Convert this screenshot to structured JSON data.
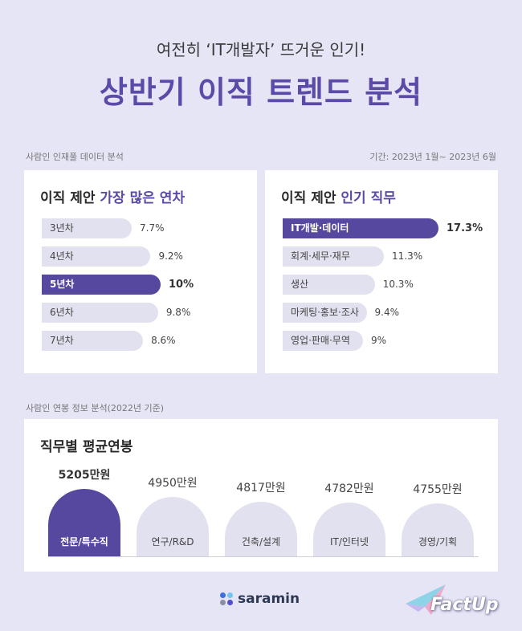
{
  "header": {
    "subtitle": "여전히 ‘IT개발자’ 뜨거운 인기!",
    "title": "상반기 이직 트렌드 분석"
  },
  "section1": {
    "source": "사람인 인재풀 데이터 분석",
    "period": "기간: 2023년 1월~ 2023년 6월"
  },
  "section2": {
    "source": "사람인 연봉 정보 분석(2022년 기준)"
  },
  "chart_data": [
    {
      "type": "bar",
      "orientation": "horizontal",
      "title_prefix": "이직 제안 ",
      "title_highlight": "가장 많은 연차",
      "categories": [
        "3년차",
        "4년차",
        "5년차",
        "6년차",
        "7년차"
      ],
      "values": [
        7.7,
        9.2,
        10,
        9.8,
        8.6
      ],
      "value_labels": [
        "7.7%",
        "9.2%",
        "10%",
        "9.8%",
        "8.6%"
      ],
      "unit": "%",
      "highlight_index": 2,
      "colors": {
        "bar": "#e2e1ef",
        "highlight": "#56479f"
      }
    },
    {
      "type": "bar",
      "orientation": "horizontal",
      "title_prefix": "이직 제안 ",
      "title_highlight": "인기 직무",
      "categories": [
        "IT개발·데이터",
        "회계·세무·재무",
        "생산",
        "마케팅·홍보·조사",
        "영업·판매·무역"
      ],
      "values": [
        17.3,
        11.3,
        10.3,
        9.4,
        9
      ],
      "value_labels": [
        "17.3%",
        "11.3%",
        "10.3%",
        "9.4%",
        "9%"
      ],
      "unit": "%",
      "highlight_index": 0,
      "colors": {
        "bar": "#e2e1ef",
        "highlight": "#56479f"
      }
    },
    {
      "type": "bar",
      "orientation": "vertical",
      "title": "직무별 평균연봉",
      "categories": [
        "전문/특수직",
        "연구/R&D",
        "건축/설계",
        "IT/인터넷",
        "경영/기획"
      ],
      "values": [
        5205,
        4950,
        4817,
        4782,
        4755
      ],
      "value_labels": [
        "5205만원",
        "4950만원",
        "4817만원",
        "4782만원",
        "4755만원"
      ],
      "unit": "만원",
      "highlight_index": 0,
      "colors": {
        "bar": "#e2e1ef",
        "highlight": "#56479f"
      }
    }
  ],
  "footer": {
    "brand": "saramin",
    "brand_dot_colors": [
      "#3d6fe0",
      "#6fc6f0",
      "#8b8fa3",
      "#4f4fcf"
    ],
    "factup": "FactUp"
  }
}
